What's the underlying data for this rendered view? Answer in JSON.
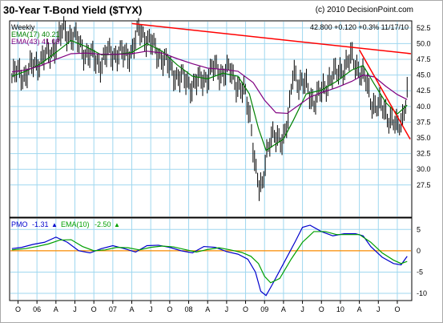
{
  "title": "30-Year T-Bond Yield ($TYX)",
  "copyright": "(c) 2010 DecisionPoint.com",
  "period": "Weekly",
  "quote": "42.800  +0.120  +0.3%  11/17/10",
  "ema_fast_label": "EMA(17) 40.21",
  "ema_slow_label": "EMA(43) 41.09",
  "pmo_label": "PMO",
  "pmo_value": "-1.31",
  "pmo_ema_label": "EMA(10)",
  "pmo_ema_value": "-2.50",
  "up_arrow": "▲",
  "colors": {
    "price": "#000000",
    "ema17": "#008000",
    "ema43": "#800080",
    "trendline": "#ff0000",
    "pmo": "#0000cc",
    "pmo_ema": "#00a000",
    "zero_line": "#ff8c00",
    "grid": "#9fd7ef"
  },
  "chart_data": [
    {
      "type": "line",
      "title": "30-Year T-Bond Yield ($TYX)",
      "y_axis_side": "right",
      "ylim": [
        22.5,
        53.5
      ],
      "yticks": [
        27.5,
        30.0,
        32.5,
        35.0,
        37.5,
        40.0,
        42.5,
        45.0,
        47.5,
        50.0,
        52.5
      ],
      "xlim": [
        2005.65,
        2010.93
      ],
      "xticks": [
        {
          "x": 2005.75,
          "label": "O"
        },
        {
          "x": 2006.0,
          "label": "06"
        },
        {
          "x": 2006.25,
          "label": "A"
        },
        {
          "x": 2006.5,
          "label": "J"
        },
        {
          "x": 2006.75,
          "label": "O"
        },
        {
          "x": 2007.0,
          "label": "07"
        },
        {
          "x": 2007.25,
          "label": "A"
        },
        {
          "x": 2007.5,
          "label": "J"
        },
        {
          "x": 2007.75,
          "label": "O"
        },
        {
          "x": 2008.0,
          "label": "08"
        },
        {
          "x": 2008.25,
          "label": "A"
        },
        {
          "x": 2008.5,
          "label": "J"
        },
        {
          "x": 2008.75,
          "label": "O"
        },
        {
          "x": 2009.0,
          "label": "09"
        },
        {
          "x": 2009.25,
          "label": "A"
        },
        {
          "x": 2009.5,
          "label": "J"
        },
        {
          "x": 2009.75,
          "label": "O"
        },
        {
          "x": 2010.0,
          "label": "10"
        },
        {
          "x": 2010.25,
          "label": "A"
        },
        {
          "x": 2010.5,
          "label": "J"
        },
        {
          "x": 2010.75,
          "label": "O"
        }
      ],
      "grid": true,
      "series": [
        {
          "name": "Price",
          "x": [
            2005.67,
            2005.75,
            2005.85,
            2005.95,
            2006.05,
            2006.15,
            2006.25,
            2006.35,
            2006.45,
            2006.55,
            2006.65,
            2006.75,
            2006.85,
            2006.95,
            2007.05,
            2007.15,
            2007.25,
            2007.35,
            2007.45,
            2007.55,
            2007.65,
            2007.75,
            2007.85,
            2007.95,
            2008.05,
            2008.15,
            2008.25,
            2008.35,
            2008.45,
            2008.55,
            2008.65,
            2008.75,
            2008.82,
            2008.88,
            2008.93,
            2008.97,
            2009.02,
            2009.08,
            2009.15,
            2009.25,
            2009.32,
            2009.38,
            2009.45,
            2009.55,
            2009.65,
            2009.75,
            2009.85,
            2009.95,
            2010.05,
            2010.15,
            2010.25,
            2010.33,
            2010.4,
            2010.5,
            2010.6,
            2010.68,
            2010.75,
            2010.82,
            2010.88
          ],
          "values": [
            44.5,
            45.5,
            45.0,
            46.5,
            47.5,
            48.0,
            50.0,
            52.0,
            51.5,
            50.0,
            48.5,
            47.5,
            47.0,
            48.5,
            48.5,
            48.0,
            49.0,
            52.0,
            51.0,
            49.0,
            48.0,
            46.0,
            45.0,
            44.0,
            43.5,
            44.0,
            45.0,
            46.0,
            45.5,
            45.5,
            43.5,
            41.5,
            38.0,
            30.0,
            26.5,
            27.0,
            33.0,
            35.0,
            34.5,
            35.5,
            38.0,
            46.0,
            44.0,
            43.0,
            41.0,
            42.0,
            44.5,
            45.0,
            46.5,
            47.5,
            46.0,
            44.0,
            41.0,
            40.0,
            39.0,
            38.0,
            36.0,
            38.5,
            42.8
          ]
        },
        {
          "name": "EMA(17)",
          "x": [
            2005.67,
            2005.85,
            2006.05,
            2006.25,
            2006.45,
            2006.65,
            2006.85,
            2007.05,
            2007.25,
            2007.45,
            2007.65,
            2007.85,
            2008.05,
            2008.25,
            2008.45,
            2008.65,
            2008.8,
            2008.92,
            2009.02,
            2009.12,
            2009.25,
            2009.38,
            2009.55,
            2009.75,
            2009.95,
            2010.15,
            2010.3,
            2010.45,
            2010.6,
            2010.75,
            2010.88
          ],
          "values": [
            44.8,
            45.6,
            46.8,
            48.6,
            50.5,
            49.5,
            48.2,
            48.3,
            48.6,
            50.0,
            48.8,
            46.6,
            44.8,
            44.4,
            45.3,
            44.8,
            42.0,
            36.5,
            33.0,
            33.8,
            34.8,
            37.8,
            42.0,
            42.6,
            44.0,
            45.8,
            46.5,
            43.5,
            40.6,
            38.8,
            40.2
          ]
        },
        {
          "name": "EMA(43)",
          "x": [
            2005.67,
            2005.85,
            2006.05,
            2006.25,
            2006.45,
            2006.65,
            2006.85,
            2007.05,
            2007.25,
            2007.45,
            2007.65,
            2007.85,
            2008.05,
            2008.25,
            2008.45,
            2008.65,
            2008.85,
            2009.0,
            2009.15,
            2009.3,
            2009.45,
            2009.6,
            2009.75,
            2009.95,
            2010.15,
            2010.3,
            2010.45,
            2010.6,
            2010.75,
            2010.88
          ],
          "values": [
            45.5,
            45.8,
            46.5,
            47.5,
            48.4,
            48.5,
            48.3,
            48.3,
            48.4,
            48.8,
            48.5,
            47.6,
            46.8,
            46.1,
            45.9,
            45.6,
            43.8,
            41.0,
            39.0,
            38.9,
            40.2,
            41.5,
            42.2,
            43.0,
            44.0,
            45.0,
            44.7,
            43.2,
            41.9,
            41.1
          ]
        },
        {
          "name": "Trendline 1",
          "x": [
            2007.25,
            2010.93
          ],
          "values": [
            53.2,
            48.4
          ]
        },
        {
          "name": "Trendline 2",
          "x": [
            2010.25,
            2010.92
          ],
          "values": [
            49.0,
            34.8
          ]
        }
      ]
    },
    {
      "type": "line",
      "title": "PMO",
      "y_axis_side": "right",
      "ylim": [
        -11.5,
        7.5
      ],
      "yticks": [
        -10,
        -5,
        0,
        5
      ],
      "zero_line": true,
      "xlim": [
        2005.65,
        2010.93
      ],
      "grid": true,
      "series": [
        {
          "name": "PMO",
          "x": [
            2005.67,
            2005.8,
            2005.95,
            2006.1,
            2006.25,
            2006.4,
            2006.55,
            2006.7,
            2006.85,
            2007.0,
            2007.15,
            2007.3,
            2007.45,
            2007.6,
            2007.75,
            2007.9,
            2008.05,
            2008.2,
            2008.35,
            2008.5,
            2008.65,
            2008.78,
            2008.88,
            2008.95,
            2009.02,
            2009.1,
            2009.25,
            2009.4,
            2009.5,
            2009.6,
            2009.75,
            2009.9,
            2010.05,
            2010.2,
            2010.3,
            2010.4,
            2010.55,
            2010.7,
            2010.8,
            2010.88
          ],
          "values": [
            0.5,
            0.8,
            1.5,
            2.0,
            3.2,
            2.0,
            0.0,
            -0.5,
            0.5,
            1.2,
            0.5,
            -0.3,
            1.2,
            1.3,
            0.8,
            0.0,
            -0.5,
            1.0,
            0.8,
            -0.2,
            -0.8,
            -2.0,
            -5.0,
            -9.5,
            -10.5,
            -8.0,
            -3.0,
            2.0,
            5.5,
            6.0,
            4.5,
            3.5,
            4.0,
            4.0,
            3.5,
            1.0,
            -1.5,
            -3.0,
            -3.3,
            -1.3
          ]
        },
        {
          "name": "EMA(10)",
          "x": [
            2005.67,
            2005.85,
            2006.0,
            2006.15,
            2006.3,
            2006.45,
            2006.6,
            2006.75,
            2006.9,
            2007.05,
            2007.2,
            2007.35,
            2007.5,
            2007.65,
            2007.8,
            2007.95,
            2008.1,
            2008.25,
            2008.4,
            2008.55,
            2008.7,
            2008.82,
            2008.92,
            2009.0,
            2009.08,
            2009.2,
            2009.35,
            2009.5,
            2009.65,
            2009.8,
            2009.95,
            2010.1,
            2010.25,
            2010.4,
            2010.55,
            2010.7,
            2010.8,
            2010.88
          ],
          "values": [
            0.2,
            0.5,
            1.0,
            1.6,
            2.5,
            2.6,
            1.0,
            0.0,
            0.2,
            0.8,
            0.7,
            0.2,
            0.8,
            1.1,
            0.9,
            0.3,
            -0.3,
            0.3,
            0.7,
            0.2,
            -0.4,
            -1.3,
            -3.0,
            -6.0,
            -7.5,
            -6.5,
            -2.0,
            2.0,
            4.5,
            4.5,
            3.8,
            3.8,
            3.8,
            2.0,
            -0.5,
            -2.2,
            -3.0,
            -2.5
          ]
        }
      ]
    }
  ]
}
